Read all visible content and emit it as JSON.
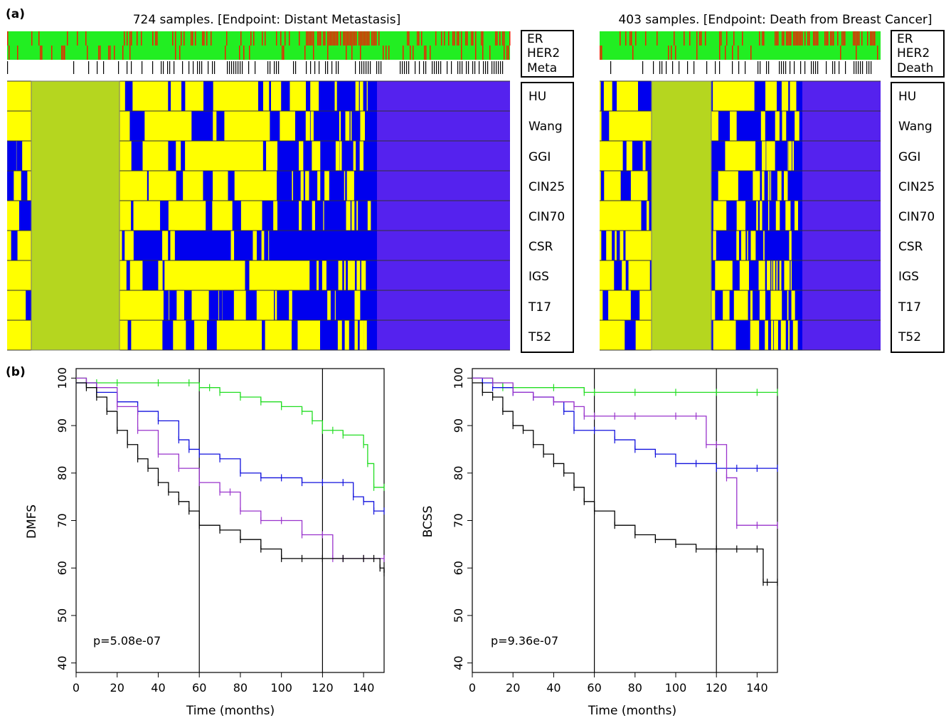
{
  "figure": {
    "panel_a_label": "(a)",
    "panel_b_label": "(b)"
  },
  "heatmaps": [
    {
      "title": "724 samples. [Endpoint: Distant Metastasis]",
      "annotation_labels": [
        "ER",
        "HER2",
        "Meta"
      ],
      "row_labels": [
        "HU",
        "Wang",
        "GGI",
        "CIN25",
        "CIN70",
        "CSR",
        "IGS",
        "T17",
        "T52"
      ]
    },
    {
      "title": "403 samples. [Endpoint: Death from Breast Cancer]",
      "annotation_labels": [
        "ER",
        "HER2",
        "Death"
      ],
      "row_labels": [
        "HU",
        "Wang",
        "GGI",
        "CIN25",
        "CIN70",
        "CSR",
        "IGS",
        "T17",
        "T52"
      ]
    }
  ],
  "colors": {
    "yellow": "#ffff00",
    "blue": "#0000ee",
    "purple_blue": "#5522ee",
    "olive_overlay": "#b5d61f",
    "annot_green": "#22ee22",
    "annot_red": "#ee2200",
    "series_green": "#22dd22",
    "series_blue": "#1111dd",
    "series_purple": "#9933cc",
    "series_black": "#000000"
  },
  "chart_data": [
    {
      "type": "line",
      "xlabel": "Time (months)",
      "ylabel": "DMFS",
      "annotation": "p=5.08e-07",
      "xlim": [
        0,
        150
      ],
      "ylim": [
        38,
        102
      ],
      "xticks": [
        0,
        20,
        40,
        60,
        80,
        100,
        120,
        140
      ],
      "yticks": [
        40,
        50,
        60,
        70,
        80,
        90,
        100
      ],
      "vlines": [
        60,
        120
      ],
      "series": [
        {
          "color": "#22dd22",
          "x": [
            0,
            5,
            10,
            20,
            40,
            55,
            60,
            65,
            70,
            80,
            90,
            100,
            110,
            115,
            120,
            125,
            130,
            140,
            142,
            145,
            150
          ],
          "y": [
            100,
            99,
            99,
            99,
            99,
            99,
            98,
            98,
            97,
            96,
            95,
            94,
            93,
            91,
            89,
            89,
            88,
            86,
            82,
            77,
            77
          ]
        },
        {
          "color": "#1111dd",
          "x": [
            0,
            10,
            20,
            30,
            40,
            50,
            55,
            60,
            70,
            80,
            90,
            100,
            110,
            120,
            130,
            135,
            140,
            145,
            150
          ],
          "y": [
            99,
            97,
            95,
            93,
            91,
            87,
            85,
            84,
            83,
            80,
            79,
            79,
            78,
            78,
            78,
            75,
            74,
            72,
            72
          ]
        },
        {
          "color": "#9933cc",
          "x": [
            0,
            5,
            10,
            20,
            30,
            40,
            50,
            60,
            70,
            75,
            80,
            90,
            100,
            110,
            120,
            125,
            130,
            140,
            150
          ],
          "y": [
            100,
            99,
            98,
            94,
            89,
            84,
            81,
            78,
            76,
            76,
            72,
            70,
            70,
            67,
            67,
            62,
            62,
            62,
            62
          ]
        },
        {
          "color": "#000000",
          "x": [
            0,
            5,
            10,
            15,
            20,
            25,
            30,
            35,
            40,
            45,
            50,
            55,
            60,
            70,
            80,
            90,
            100,
            110,
            120,
            130,
            140,
            145,
            148,
            150
          ],
          "y": [
            99,
            98,
            96,
            93,
            89,
            86,
            83,
            81,
            78,
            76,
            74,
            72,
            69,
            68,
            66,
            64,
            62,
            62,
            62,
            62,
            62,
            62,
            60,
            59
          ]
        }
      ]
    },
    {
      "type": "line",
      "xlabel": "Time (months)",
      "ylabel": "BCSS",
      "annotation": "p=9.36e-07",
      "xlim": [
        0,
        150
      ],
      "ylim": [
        38,
        102
      ],
      "xticks": [
        0,
        20,
        40,
        60,
        80,
        100,
        120,
        140
      ],
      "yticks": [
        40,
        50,
        60,
        70,
        80,
        90,
        100
      ],
      "vlines": [
        60,
        120
      ],
      "series": [
        {
          "color": "#22dd22",
          "x": [
            0,
            10,
            15,
            20,
            40,
            55,
            60,
            80,
            100,
            120,
            140,
            150
          ],
          "y": [
            100,
            99,
            98,
            98,
            98,
            97,
            97,
            97,
            97,
            97,
            97,
            97
          ]
        },
        {
          "color": "#1111dd",
          "x": [
            0,
            5,
            10,
            20,
            30,
            40,
            45,
            50,
            60,
            70,
            80,
            90,
            100,
            110,
            120,
            130,
            140,
            150
          ],
          "y": [
            100,
            99,
            98,
            97,
            96,
            95,
            93,
            89,
            89,
            87,
            85,
            84,
            82,
            82,
            81,
            81,
            81,
            81
          ]
        },
        {
          "color": "#9933cc",
          "x": [
            0,
            10,
            20,
            30,
            40,
            50,
            55,
            60,
            70,
            80,
            100,
            110,
            115,
            120,
            125,
            130,
            140,
            150
          ],
          "y": [
            100,
            99,
            97,
            96,
            95,
            94,
            92,
            92,
            92,
            92,
            92,
            92,
            86,
            86,
            79,
            69,
            69,
            69
          ]
        },
        {
          "color": "#000000",
          "x": [
            0,
            5,
            10,
            15,
            20,
            25,
            30,
            35,
            40,
            45,
            50,
            55,
            60,
            70,
            80,
            90,
            100,
            110,
            120,
            130,
            140,
            143,
            145,
            150
          ],
          "y": [
            99,
            97,
            96,
            93,
            90,
            89,
            86,
            84,
            82,
            80,
            77,
            74,
            72,
            69,
            67,
            66,
            65,
            64,
            64,
            64,
            64,
            57,
            57,
            57
          ]
        }
      ]
    }
  ]
}
